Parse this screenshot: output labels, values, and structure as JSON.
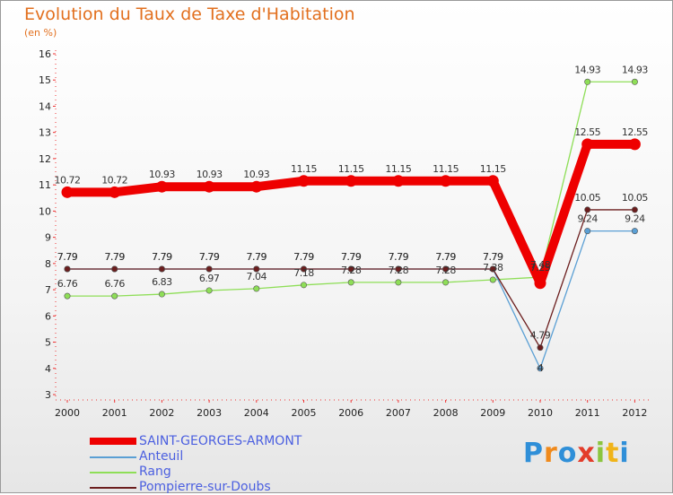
{
  "chart_data": {
    "type": "line",
    "title": "Evolution du Taux de Taxe d'Habitation",
    "subtitle": "(en %)",
    "xlabel": "",
    "ylabel": "",
    "ylim": [
      3,
      16
    ],
    "yticks": [
      "3",
      "4",
      "5",
      "6",
      "7",
      "8",
      "9",
      "10",
      "11",
      "12",
      "13",
      "14",
      "15",
      "16"
    ],
    "categories": [
      "2000",
      "2001",
      "2002",
      "2003",
      "2004",
      "2005",
      "2006",
      "2007",
      "2008",
      "2009",
      "2010",
      "2011",
      "2012"
    ],
    "grid": false,
    "legend_position": "bottom-left",
    "series": [
      {
        "name": "SAINT-GEORGES-ARMONT",
        "color": "#ee0000",
        "values": [
          10.72,
          10.72,
          10.93,
          10.93,
          10.93,
          11.15,
          11.15,
          11.15,
          11.15,
          11.15,
          7.25,
          12.55,
          12.55
        ],
        "labels": [
          "10.72",
          "10.72",
          "10.93",
          "10.93",
          "10.93",
          "11.15",
          "11.15",
          "11.15",
          "11.15",
          "11.15",
          "7.25",
          "12.55",
          "12.55"
        ]
      },
      {
        "name": "Anteuil",
        "color": "#5a9fd4",
        "values": [
          7.79,
          7.79,
          7.79,
          7.79,
          7.79,
          7.79,
          7.79,
          7.79,
          7.79,
          7.79,
          4,
          9.24,
          9.24
        ],
        "labels": [
          "7.79",
          "7.79",
          "7.79",
          "7.79",
          "7.79",
          "7.79",
          "7.79",
          "7.79",
          "7.79",
          "7.79",
          "4",
          "9.24",
          "9.24"
        ]
      },
      {
        "name": "Rang",
        "color": "#8ede57",
        "values": [
          6.76,
          6.76,
          6.83,
          6.97,
          7.04,
          7.18,
          7.28,
          7.28,
          7.28,
          7.38,
          7.48,
          14.93,
          14.93
        ],
        "labels": [
          "6.76",
          "6.76",
          "6.83",
          "6.97",
          "7.04",
          "7.18",
          "7.28",
          "7.28",
          "7.28",
          "7.38",
          "7.48",
          "14.93",
          "14.93"
        ]
      },
      {
        "name": "Pompierre-sur-Doubs",
        "color": "#6b1e1e",
        "values": [
          7.79,
          7.79,
          7.79,
          7.79,
          7.79,
          7.79,
          7.79,
          7.79,
          7.79,
          7.79,
          4.79,
          10.05,
          10.05
        ],
        "labels": [
          "7.79",
          "7.79",
          "7.79",
          "7.79",
          "7.79",
          "7.79",
          "7.79",
          "7.79",
          "7.79",
          "7.79",
          "4.79",
          "10.05",
          "10.05"
        ]
      }
    ]
  },
  "logo": {
    "letters": [
      "P",
      "r",
      "o",
      "x",
      "i",
      "t",
      "i"
    ],
    "colors": [
      "#2f8fd8",
      "#f08a1c",
      "#2f8fd8",
      "#e33c2a",
      "#8bc53f",
      "#f0b419",
      "#2f8fd8"
    ]
  }
}
